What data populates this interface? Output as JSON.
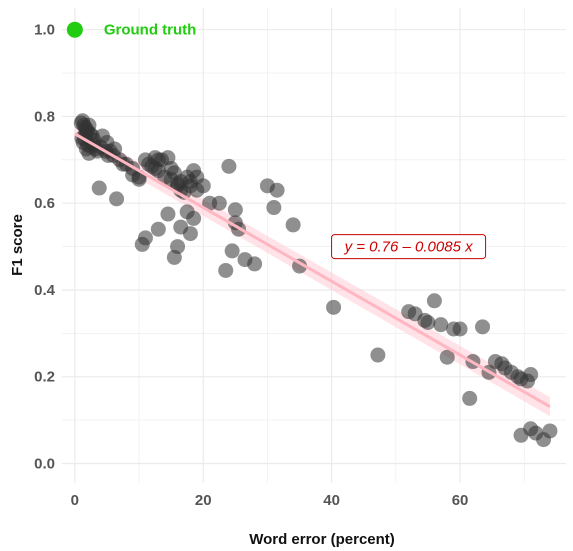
{
  "chart_data": {
    "type": "scatter",
    "xlabel": "Word error (percent)",
    "ylabel": "F1 score",
    "xlim": [
      -2,
      76.5
    ],
    "ylim": [
      -0.045,
      1.05
    ],
    "x_ticks": [
      0,
      20,
      40,
      60
    ],
    "y_ticks": [
      0.0,
      0.2,
      0.4,
      0.6,
      0.8,
      1.0
    ],
    "x_tick_labels": [
      "0",
      "20",
      "40",
      "60"
    ],
    "y_tick_labels": [
      "0.0",
      "0.2",
      "0.4",
      "0.6",
      "0.8",
      "1.0"
    ],
    "grid": true,
    "ground_truth": {
      "label": "Ground truth",
      "x": 0,
      "y": 1.0,
      "color": "#22cc11"
    },
    "regression": {
      "intercept": 0.76,
      "slope": -0.0085,
      "x_range": [
        0,
        74
      ],
      "line_color": "#ffb6c1",
      "band_color": "#ffc0cb",
      "equation_label": "y = 0.76 – 0.0085 x",
      "label_color": "#cc0000",
      "label_anchor": {
        "x": 40.3,
        "y": 0.5
      }
    },
    "point_color": "#333333",
    "series": [
      {
        "x": [
          1.0,
          1.2,
          1.4,
          1.6,
          1.8,
          2.0,
          2.2,
          2.4,
          1.5,
          2.7,
          3.0,
          1.3,
          2.0,
          2.5,
          1.8,
          3.5,
          2.2,
          4.0,
          1.1,
          1.7,
          2.9,
          3.3,
          4.3,
          4.8,
          5.2,
          5.5,
          6.0,
          7.0,
          8.0,
          9.0,
          3.8,
          6.5,
          7.5,
          10.0,
          11.0,
          12.5,
          13.5,
          14.5,
          5.0,
          6.2,
          9.0,
          10.0,
          11.5,
          12.0,
          13.0,
          14.0,
          15.0,
          16.0,
          16.5,
          17.5,
          18.0,
          18.5,
          19.0,
          12.5,
          13.0,
          15.0,
          15.5,
          16.0,
          16.5,
          17.0,
          18.0,
          19.0,
          20.0,
          21.0,
          24.0,
          25.0,
          10.5,
          11.0,
          13.0,
          14.5,
          15.5,
          16.0,
          16.5,
          17.5,
          18.0,
          18.5,
          22.5,
          23.5,
          24.5,
          25.0,
          25.5,
          26.5,
          28.0,
          30.0,
          31.0,
          31.5,
          34.0,
          35.0,
          40.3,
          47.2,
          52.0,
          53.0,
          54.5,
          55.0,
          56.0,
          57.0,
          58.0,
          59.0,
          60.0,
          61.5,
          62.0,
          63.5,
          64.5,
          65.5,
          66.5,
          67.0,
          68.0,
          69.0,
          69.5,
          70.5,
          71.0,
          71.8,
          69.5,
          71.0,
          73.0,
          74.0
        ],
        "y": [
          0.785,
          0.79,
          0.78,
          0.775,
          0.77,
          0.765,
          0.78,
          0.76,
          0.75,
          0.755,
          0.745,
          0.74,
          0.735,
          0.73,
          0.725,
          0.72,
          0.715,
          0.73,
          0.75,
          0.76,
          0.735,
          0.725,
          0.755,
          0.72,
          0.71,
          0.72,
          0.71,
          0.7,
          0.69,
          0.68,
          0.635,
          0.61,
          0.69,
          0.66,
          0.7,
          0.68,
          0.7,
          0.705,
          0.74,
          0.725,
          0.665,
          0.655,
          0.69,
          0.685,
          0.675,
          0.66,
          0.655,
          0.645,
          0.65,
          0.66,
          0.65,
          0.675,
          0.66,
          0.705,
          0.7,
          0.68,
          0.67,
          0.64,
          0.63,
          0.625,
          0.64,
          0.63,
          0.64,
          0.6,
          0.685,
          0.585,
          0.505,
          0.52,
          0.54,
          0.575,
          0.475,
          0.5,
          0.545,
          0.58,
          0.53,
          0.565,
          0.6,
          0.445,
          0.49,
          0.555,
          0.54,
          0.47,
          0.46,
          0.64,
          0.59,
          0.63,
          0.55,
          0.455,
          0.36,
          0.25,
          0.35,
          0.345,
          0.33,
          0.325,
          0.375,
          0.32,
          0.245,
          0.31,
          0.31,
          0.15,
          0.235,
          0.315,
          0.21,
          0.235,
          0.23,
          0.22,
          0.21,
          0.2,
          0.195,
          0.19,
          0.205,
          0.07,
          0.065,
          0.08,
          0.055,
          0.075
        ]
      }
    ]
  }
}
